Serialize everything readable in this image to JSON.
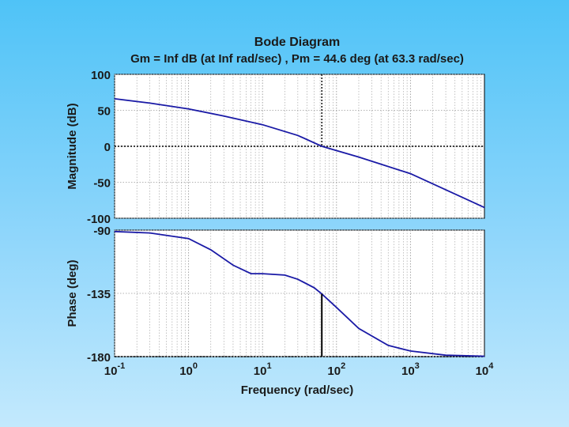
{
  "chart_data": [
    {
      "type": "line",
      "panel": "magnitude",
      "title": "Bode Diagram",
      "subtitle": "Gm = Inf dB (at Inf rad/sec) ,  Pm = 44.6 deg (at 63.3 rad/sec)",
      "xlabel": "Frequency  (rad/sec)",
      "ylabel": "Magnitude (dB)",
      "xscale": "log",
      "xlim": [
        0.1,
        10000
      ],
      "ylim": [
        -100,
        100
      ],
      "yticks": [
        "100",
        "50",
        "0",
        "-50",
        "-100"
      ],
      "ytick_values": [
        100,
        50,
        0,
        -50,
        -100
      ],
      "grid": true,
      "series": [
        {
          "name": "Magnitude",
          "color": "#1a1aa6",
          "x": [
            0.1,
            0.3,
            1,
            3,
            10,
            30,
            63.3,
            200,
            1000,
            10000
          ],
          "y": [
            66,
            60,
            52,
            42,
            30,
            15,
            0,
            -15,
            -38,
            -85
          ]
        }
      ],
      "reference_line": {
        "y": 0,
        "style": "dotted"
      },
      "marker_x": 63.3
    },
    {
      "type": "line",
      "panel": "phase",
      "ylabel": "Phase (deg)",
      "xscale": "log",
      "xlim": [
        0.1,
        10000
      ],
      "ylim": [
        -180,
        -90
      ],
      "yticks": [
        "-90",
        "-135",
        "-180"
      ],
      "ytick_values": [
        -90,
        -135,
        -180
      ],
      "xticks": [
        {
          "base": "10",
          "exp": "-1"
        },
        {
          "base": "10",
          "exp": "0"
        },
        {
          "base": "10",
          "exp": "1"
        },
        {
          "base": "10",
          "exp": "2"
        },
        {
          "base": "10",
          "exp": "3"
        },
        {
          "base": "10",
          "exp": "4"
        }
      ],
      "grid": true,
      "series": [
        {
          "name": "Phase",
          "color": "#1a1aa6",
          "x": [
            0.1,
            0.3,
            1,
            2,
            4,
            7,
            10,
            20,
            30,
            50,
            63.3,
            100,
            200,
            500,
            1000,
            3000,
            10000
          ],
          "y": [
            -91,
            -92,
            -96,
            -104,
            -115,
            -121,
            -121,
            -122,
            -125,
            -131,
            -135.4,
            -145,
            -160,
            -172,
            -176,
            -179,
            -179.7
          ]
        }
      ],
      "reference_line": {
        "y": -180,
        "style": "dotted"
      },
      "marker_x": 63.3
    }
  ]
}
